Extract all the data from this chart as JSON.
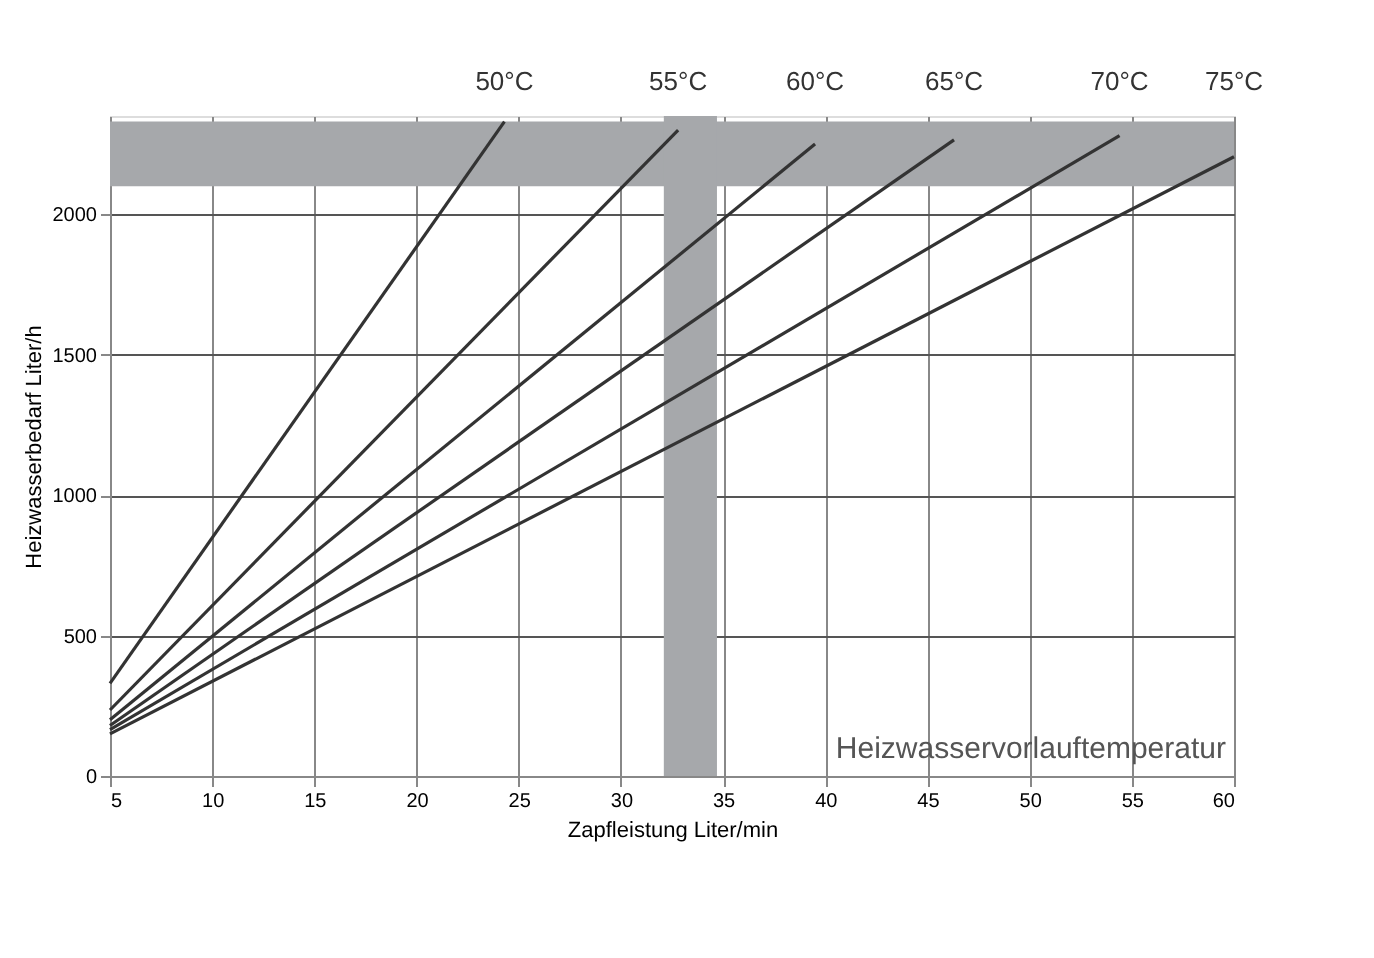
{
  "chart_data": {
    "type": "line",
    "xlabel": "Zapfleistung Liter/min",
    "ylabel": "Heizwasserbedarf Liter/h",
    "series": [
      {
        "name": "50°C",
        "color": "#333333",
        "x": [
          5,
          24.3
        ],
        "values": [
          330,
          2330
        ]
      },
      {
        "name": "55°C",
        "color": "#333333",
        "x": [
          5,
          32.8
        ],
        "values": [
          235,
          2300
        ]
      },
      {
        "name": "60°C",
        "color": "#333333",
        "x": [
          5,
          39.5
        ],
        "values": [
          200,
          2250
        ]
      },
      {
        "name": "65°C",
        "color": "#333333",
        "x": [
          5,
          46.3
        ],
        "values": [
          180,
          2265
        ]
      },
      {
        "name": "70°C",
        "color": "#333333",
        "x": [
          5,
          54.4
        ],
        "values": [
          165,
          2280
        ]
      },
      {
        "name": "75°C",
        "color": "#333333",
        "x": [
          5,
          60
        ],
        "values": [
          150,
          2205
        ]
      }
    ],
    "xlim": [
      5,
      60
    ],
    "xticks": [
      5,
      10,
      15,
      20,
      25,
      30,
      35,
      40,
      45,
      50,
      55,
      60
    ],
    "ylim": [
      0,
      2350
    ],
    "yticks": [
      0,
      500,
      1000,
      1500,
      2000
    ],
    "bands": [
      {
        "axis": "y",
        "from": 2100,
        "to": 2330,
        "color": "#a6a8ab"
      },
      {
        "axis": "x",
        "from": 32.1,
        "to": 34.7,
        "color": "#a6a8ab"
      }
    ],
    "annotations": [
      "Heizwasservorlauftemperatur"
    ],
    "grid": true,
    "marker": "none",
    "line_style": "solid"
  }
}
